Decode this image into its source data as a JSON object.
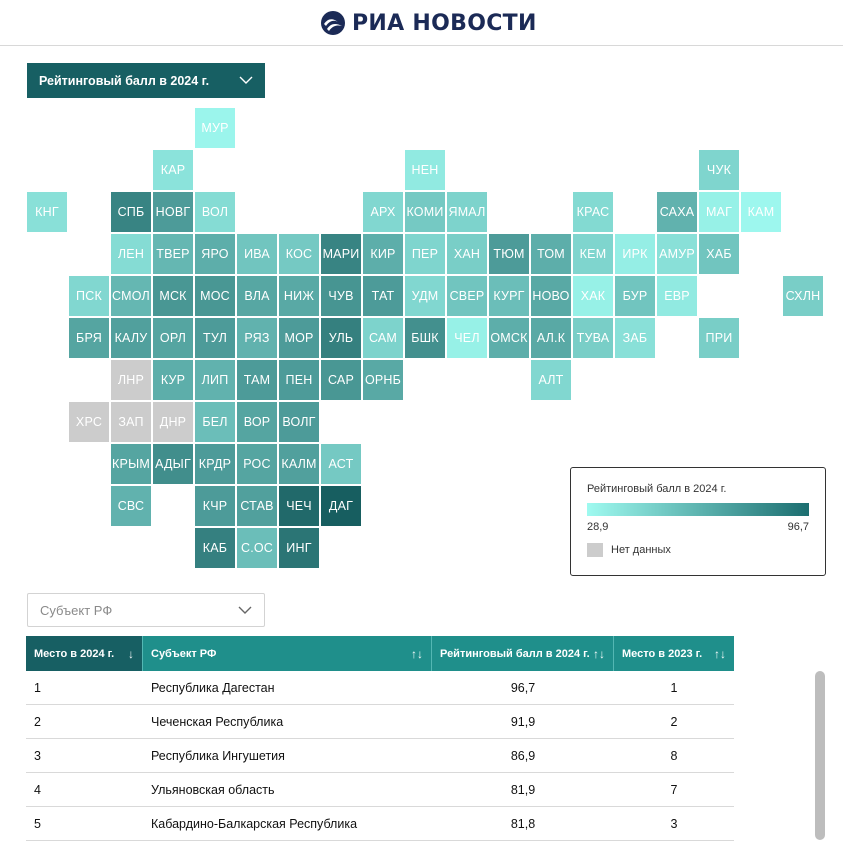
{
  "header": {
    "logo_text": "РИА НОВОСТИ"
  },
  "metric_selector": {
    "label": "Рейтинговый балл в 2024 г."
  },
  "map": {
    "range": [
      28.9,
      96.7
    ],
    "nodata_color": "#cccccc",
    "tiles": [
      {
        "abbr": "МУР",
        "col": 4,
        "row": 0,
        "value": 31
      },
      {
        "abbr": "КАР",
        "col": 3,
        "row": 1,
        "value": 39
      },
      {
        "abbr": "НЕН",
        "col": 9,
        "row": 1,
        "value": 36
      },
      {
        "abbr": "ЧУК",
        "col": 16,
        "row": 1,
        "value": 45
      },
      {
        "abbr": "КНГ",
        "col": 0,
        "row": 2,
        "value": 40
      },
      {
        "abbr": "СПБ",
        "col": 2,
        "row": 2,
        "value": 80
      },
      {
        "abbr": "НОВГ",
        "col": 3,
        "row": 2,
        "value": 70
      },
      {
        "abbr": "ВОЛ",
        "col": 4,
        "row": 2,
        "value": 42
      },
      {
        "abbr": "АРХ",
        "col": 8,
        "row": 2,
        "value": 44
      },
      {
        "abbr": "КОМИ",
        "col": 9,
        "row": 2,
        "value": 50
      },
      {
        "abbr": "ЯМАЛ",
        "col": 10,
        "row": 2,
        "value": 46
      },
      {
        "abbr": "КРАС",
        "col": 13,
        "row": 2,
        "value": 43
      },
      {
        "abbr": "САХА",
        "col": 15,
        "row": 2,
        "value": 60
      },
      {
        "abbr": "МАГ",
        "col": 16,
        "row": 2,
        "value": 33
      },
      {
        "abbr": "КАМ",
        "col": 17,
        "row": 2,
        "value": 30
      },
      {
        "abbr": "ЛЕН",
        "col": 2,
        "row": 3,
        "value": 42
      },
      {
        "abbr": "ТВЕР",
        "col": 3,
        "row": 3,
        "value": 58
      },
      {
        "abbr": "ЯРО",
        "col": 4,
        "row": 3,
        "value": 62
      },
      {
        "abbr": "ИВА",
        "col": 5,
        "row": 3,
        "value": 52
      },
      {
        "abbr": "КОС",
        "col": 6,
        "row": 3,
        "value": 50
      },
      {
        "abbr": "МАРИ",
        "col": 7,
        "row": 3,
        "value": 80
      },
      {
        "abbr": "КИР",
        "col": 8,
        "row": 3,
        "value": 62
      },
      {
        "abbr": "ПЕР",
        "col": 9,
        "row": 3,
        "value": 45
      },
      {
        "abbr": "ХАН",
        "col": 10,
        "row": 3,
        "value": 48
      },
      {
        "abbr": "ТЮМ",
        "col": 11,
        "row": 3,
        "value": 70
      },
      {
        "abbr": "ТОМ",
        "col": 12,
        "row": 3,
        "value": 62
      },
      {
        "abbr": "КЕМ",
        "col": 13,
        "row": 3,
        "value": 45
      },
      {
        "abbr": "ИРК",
        "col": 14,
        "row": 3,
        "value": 34
      },
      {
        "abbr": "АМУР",
        "col": 15,
        "row": 3,
        "value": 40
      },
      {
        "abbr": "ХАБ",
        "col": 16,
        "row": 3,
        "value": 52
      },
      {
        "abbr": "ПСК",
        "col": 1,
        "row": 4,
        "value": 44
      },
      {
        "abbr": "СМОЛ",
        "col": 2,
        "row": 4,
        "value": 58
      },
      {
        "abbr": "МСК",
        "col": 3,
        "row": 4,
        "value": 72
      },
      {
        "abbr": "МОС",
        "col": 4,
        "row": 4,
        "value": 72
      },
      {
        "abbr": "ВЛА",
        "col": 5,
        "row": 4,
        "value": 65
      },
      {
        "abbr": "НИЖ",
        "col": 6,
        "row": 4,
        "value": 64
      },
      {
        "abbr": "ЧУВ",
        "col": 7,
        "row": 4,
        "value": 73
      },
      {
        "abbr": "ТАТ",
        "col": 8,
        "row": 4,
        "value": 70
      },
      {
        "abbr": "УДМ",
        "col": 9,
        "row": 4,
        "value": 44
      },
      {
        "abbr": "СВЕР",
        "col": 10,
        "row": 4,
        "value": 52
      },
      {
        "abbr": "КУРГ",
        "col": 11,
        "row": 4,
        "value": 55
      },
      {
        "abbr": "НОВО",
        "col": 12,
        "row": 4,
        "value": 64
      },
      {
        "abbr": "ХАК",
        "col": 13,
        "row": 4,
        "value": 33
      },
      {
        "abbr": "БУР",
        "col": 14,
        "row": 4,
        "value": 52
      },
      {
        "abbr": "ЕВР",
        "col": 15,
        "row": 4,
        "value": 36
      },
      {
        "abbr": "СХЛН",
        "col": 18,
        "row": 4,
        "value": 48
      },
      {
        "abbr": "БРЯ",
        "col": 1,
        "row": 5,
        "value": 66
      },
      {
        "abbr": "КАЛУ",
        "col": 2,
        "row": 5,
        "value": 68
      },
      {
        "abbr": "ОРЛ",
        "col": 3,
        "row": 5,
        "value": 66
      },
      {
        "abbr": "ТУЛ",
        "col": 4,
        "row": 5,
        "value": 70
      },
      {
        "abbr": "РЯЗ",
        "col": 5,
        "row": 5,
        "value": 60
      },
      {
        "abbr": "МОР",
        "col": 6,
        "row": 5,
        "value": 70
      },
      {
        "abbr": "УЛЬ",
        "col": 7,
        "row": 5,
        "value": 81.9
      },
      {
        "abbr": "САМ",
        "col": 8,
        "row": 5,
        "value": 46
      },
      {
        "abbr": "БШК",
        "col": 9,
        "row": 5,
        "value": 75
      },
      {
        "abbr": "ЧЕЛ",
        "col": 10,
        "row": 5,
        "value": 33
      },
      {
        "abbr": "ОМСК",
        "col": 11,
        "row": 5,
        "value": 62
      },
      {
        "abbr": "АЛ.К",
        "col": 12,
        "row": 5,
        "value": 64
      },
      {
        "abbr": "ТУВА",
        "col": 13,
        "row": 5,
        "value": 48
      },
      {
        "abbr": "ЗАБ",
        "col": 14,
        "row": 5,
        "value": 40
      },
      {
        "abbr": "ПРИ",
        "col": 16,
        "row": 5,
        "value": 48
      },
      {
        "abbr": "ЛНР",
        "col": 2,
        "row": 6,
        "value": null
      },
      {
        "abbr": "КУР",
        "col": 3,
        "row": 6,
        "value": 62
      },
      {
        "abbr": "ЛИП",
        "col": 4,
        "row": 6,
        "value": 60
      },
      {
        "abbr": "ТАМ",
        "col": 5,
        "row": 6,
        "value": 70
      },
      {
        "abbr": "ПЕН",
        "col": 6,
        "row": 6,
        "value": 70
      },
      {
        "abbr": "САР",
        "col": 7,
        "row": 6,
        "value": 72
      },
      {
        "abbr": "ОРНБ",
        "col": 8,
        "row": 6,
        "value": 64
      },
      {
        "abbr": "АЛТ",
        "col": 12,
        "row": 6,
        "value": 44
      },
      {
        "abbr": "ХРС",
        "col": 1,
        "row": 7,
        "value": null
      },
      {
        "abbr": "ЗАП",
        "col": 2,
        "row": 7,
        "value": null
      },
      {
        "abbr": "ДНР",
        "col": 3,
        "row": 7,
        "value": null
      },
      {
        "abbr": "БЕЛ",
        "col": 4,
        "row": 7,
        "value": 55
      },
      {
        "abbr": "ВОР",
        "col": 5,
        "row": 7,
        "value": 66
      },
      {
        "abbr": "ВОЛГ",
        "col": 6,
        "row": 7,
        "value": 70
      },
      {
        "abbr": "КРЫМ",
        "col": 2,
        "row": 8,
        "value": 66
      },
      {
        "abbr": "АДЫГ",
        "col": 3,
        "row": 8,
        "value": 76
      },
      {
        "abbr": "КРДР",
        "col": 4,
        "row": 8,
        "value": 70
      },
      {
        "abbr": "РОС",
        "col": 5,
        "row": 8,
        "value": 66
      },
      {
        "abbr": "КАЛМ",
        "col": 6,
        "row": 8,
        "value": 68
      },
      {
        "abbr": "АСТ",
        "col": 7,
        "row": 8,
        "value": 50
      },
      {
        "abbr": "СВС",
        "col": 2,
        "row": 9,
        "value": 60
      },
      {
        "abbr": "КЧР",
        "col": 4,
        "row": 9,
        "value": 70
      },
      {
        "abbr": "СТАВ",
        "col": 5,
        "row": 9,
        "value": 68
      },
      {
        "abbr": "ЧЕЧ",
        "col": 6,
        "row": 9,
        "value": 91.9
      },
      {
        "abbr": "ДАГ",
        "col": 7,
        "row": 9,
        "value": 96.7
      },
      {
        "abbr": "КАБ",
        "col": 4,
        "row": 10,
        "value": 81.8
      },
      {
        "abbr": "С.ОС",
        "col": 5,
        "row": 10,
        "value": 55
      },
      {
        "abbr": "ИНГ",
        "col": 6,
        "row": 10,
        "value": 86.9
      }
    ]
  },
  "legend": {
    "title": "Рейтинговый балл в 2024 г.",
    "min": "28,9",
    "max": "96,7",
    "nodata_label": "Нет данных"
  },
  "filter": {
    "placeholder": "Субъект РФ"
  },
  "table": {
    "headers": [
      {
        "label": "Место в 2024 г.",
        "sort": "↓"
      },
      {
        "label": "Субъект РФ",
        "sort": "↑↓"
      },
      {
        "label": "Рейтинговый балл в 2024 г.",
        "sort": "↑↓"
      },
      {
        "label": "Место в 2023 г.",
        "sort": "↑↓"
      }
    ],
    "rows": [
      {
        "place": "1",
        "region": "Республика Дагестан",
        "score": "96,7",
        "prev": "1"
      },
      {
        "place": "2",
        "region": "Чеченская Республика",
        "score": "91,9",
        "prev": "2"
      },
      {
        "place": "3",
        "region": "Республика Ингушетия",
        "score": "86,9",
        "prev": "8"
      },
      {
        "place": "4",
        "region": "Ульяновская область",
        "score": "81,9",
        "prev": "7"
      },
      {
        "place": "5",
        "region": "Кабардино-Балкарская Республика",
        "score": "81,8",
        "prev": "3"
      }
    ]
  }
}
